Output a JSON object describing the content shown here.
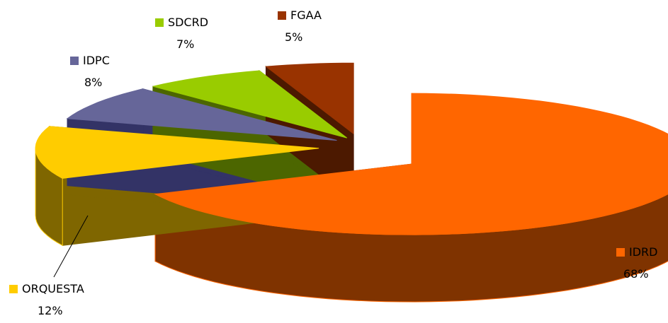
{
  "chart_data": {
    "type": "pie",
    "style": "3d-exploded",
    "title": "",
    "slices": [
      {
        "label": "IDRD",
        "value": 68,
        "value_label": "68%",
        "color": "#FF6600",
        "side_color": "#7F3300"
      },
      {
        "label": "ORQUESTA",
        "value": 12,
        "value_label": "12%",
        "color": "#FFCC00",
        "side_color": "#7F6600"
      },
      {
        "label": "IDPC",
        "value": 8,
        "value_label": "8%",
        "color": "#666699",
        "side_color": "#333366"
      },
      {
        "label": "SDCRD",
        "value": 7,
        "value_label": "7%",
        "color": "#99CC00",
        "side_color": "#4C6600"
      },
      {
        "label": "FGAA",
        "value": 5,
        "value_label": "5%",
        "color": "#993300",
        "side_color": "#4C1900"
      }
    ],
    "legend": "labels-beside-slices"
  }
}
